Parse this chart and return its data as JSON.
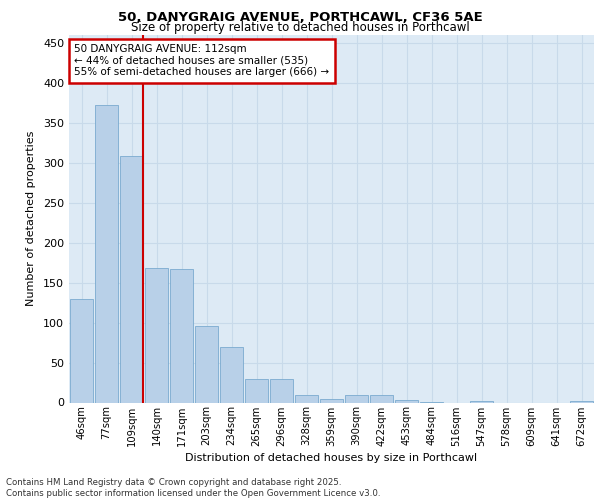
{
  "title": "50, DANYGRAIG AVENUE, PORTHCAWL, CF36 5AE",
  "subtitle": "Size of property relative to detached houses in Porthcawl",
  "xlabel": "Distribution of detached houses by size in Porthcawl",
  "ylabel": "Number of detached properties",
  "bar_labels": [
    "46sqm",
    "77sqm",
    "109sqm",
    "140sqm",
    "171sqm",
    "203sqm",
    "234sqm",
    "265sqm",
    "296sqm",
    "328sqm",
    "359sqm",
    "390sqm",
    "422sqm",
    "453sqm",
    "484sqm",
    "516sqm",
    "547sqm",
    "578sqm",
    "609sqm",
    "641sqm",
    "672sqm"
  ],
  "bar_values": [
    129,
    372,
    309,
    168,
    167,
    96,
    69,
    30,
    30,
    10,
    5,
    9,
    9,
    3,
    1,
    0,
    2,
    0,
    0,
    0,
    2
  ],
  "bar_color": "#b8d0e8",
  "bar_edge_color": "#7aaacf",
  "grid_color": "#c8daea",
  "background_color": "#ddeaf5",
  "annotation_box_text": "50 DANYGRAIG AVENUE: 112sqm\n← 44% of detached houses are smaller (535)\n55% of semi-detached houses are larger (666) →",
  "annotation_box_color": "#ffffff",
  "annotation_box_edge": "#cc0000",
  "vline_color": "#cc0000",
  "vline_x_index": 2,
  "ylim": [
    0,
    460
  ],
  "yticks": [
    0,
    50,
    100,
    150,
    200,
    250,
    300,
    350,
    400,
    450
  ],
  "footer_line1": "Contains HM Land Registry data © Crown copyright and database right 2025.",
  "footer_line2": "Contains public sector information licensed under the Open Government Licence v3.0."
}
